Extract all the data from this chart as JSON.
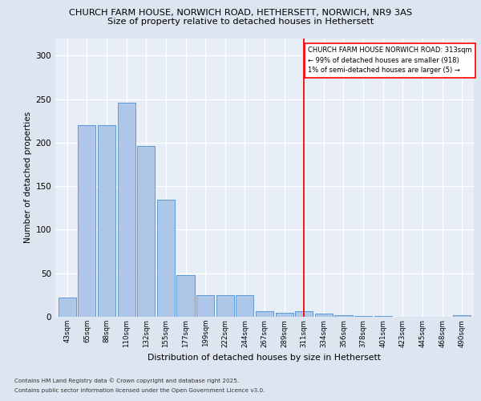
{
  "title1": "CHURCH FARM HOUSE, NORWICH ROAD, HETHERSETT, NORWICH, NR9 3AS",
  "title2": "Size of property relative to detached houses in Hethersett",
  "xlabel": "Distribution of detached houses by size in Hethersett",
  "ylabel": "Number of detached properties",
  "categories": [
    "43sqm",
    "65sqm",
    "88sqm",
    "110sqm",
    "132sqm",
    "155sqm",
    "177sqm",
    "199sqm",
    "222sqm",
    "244sqm",
    "267sqm",
    "289sqm",
    "311sqm",
    "334sqm",
    "356sqm",
    "378sqm",
    "401sqm",
    "423sqm",
    "445sqm",
    "468sqm",
    "490sqm"
  ],
  "values": [
    22,
    220,
    220,
    246,
    196,
    134,
    48,
    25,
    25,
    25,
    6,
    5,
    6,
    4,
    2,
    1,
    1,
    0,
    0,
    0,
    2
  ],
  "bar_color": "#aec6e8",
  "bar_edge_color": "#5b9bd5",
  "red_line_index": 12,
  "annotation_title": "CHURCH FARM HOUSE NORWICH ROAD: 313sqm",
  "annotation_line1": "← 99% of detached houses are smaller (918)",
  "annotation_line2": "1% of semi-detached houses are larger (5) →",
  "footer1": "Contains HM Land Registry data © Crown copyright and database right 2025.",
  "footer2": "Contains public sector information licensed under the Open Government Licence v3.0.",
  "bg_color": "#dde5f0",
  "plot_bg_color": "#e8eef7",
  "ylim": [
    0,
    320
  ],
  "yticks": [
    0,
    50,
    100,
    150,
    200,
    250,
    300
  ]
}
